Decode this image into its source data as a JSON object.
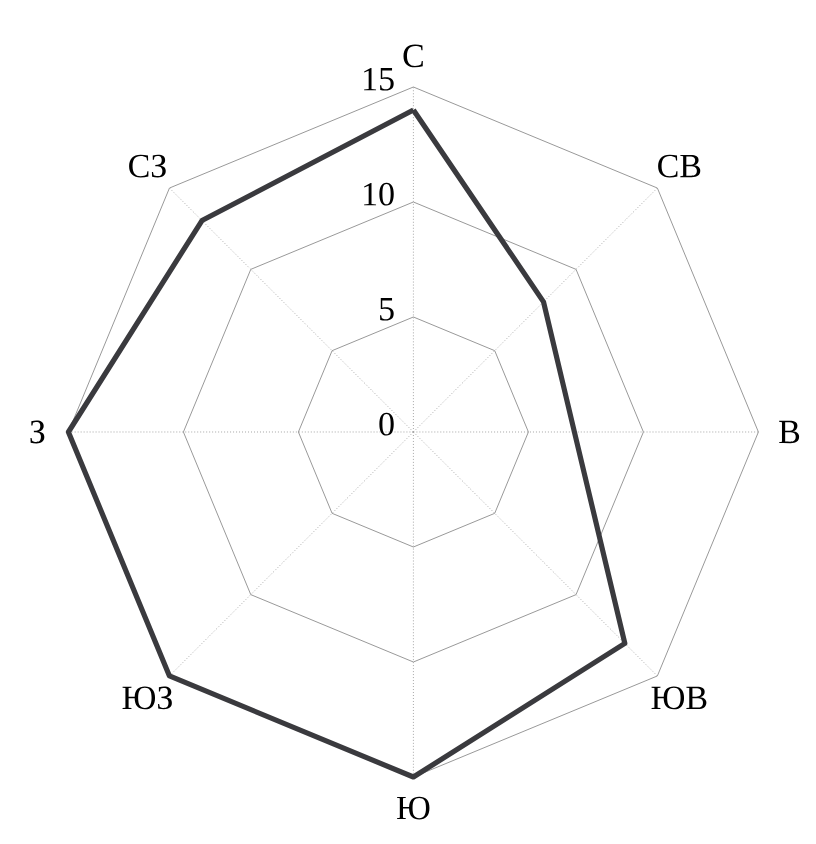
{
  "chart_data": {
    "type": "radar",
    "categories": [
      "С",
      "СВ",
      "В",
      "ЮВ",
      "Ю",
      "ЮЗ",
      "З",
      "СЗ"
    ],
    "series": [
      {
        "color": "#3a3a3e",
        "values": [
          14,
          8,
          7,
          13,
          15,
          15,
          15,
          13
        ]
      }
    ],
    "ylim": [
      0,
      15
    ],
    "yticks": [
      0,
      5,
      10,
      15
    ],
    "grid": true
  }
}
